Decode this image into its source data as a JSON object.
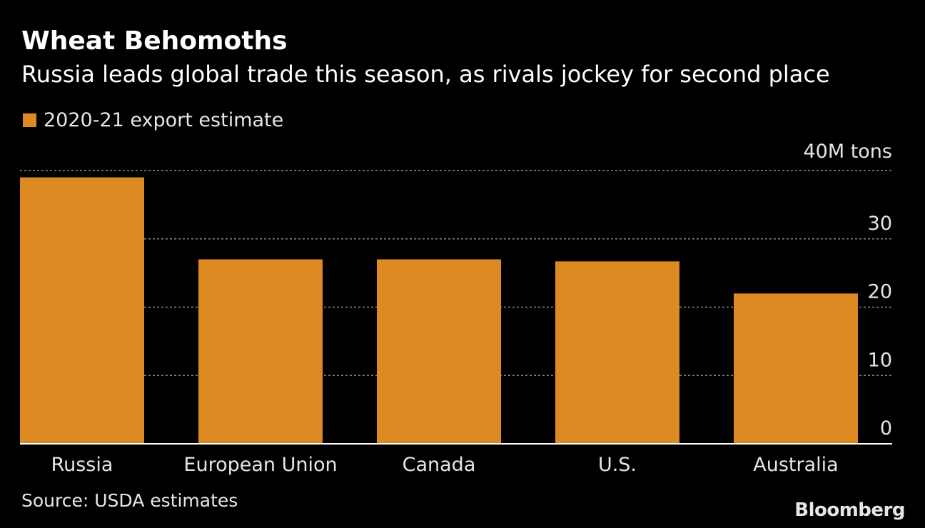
{
  "chart_data": {
    "type": "bar",
    "title": "Wheat Behomoths",
    "subtitle": "Russia leads global trade this season, as rivals jockey for second place",
    "legend": [
      {
        "label": "2020-21 export estimate",
        "color": "#dd8a22"
      }
    ],
    "unit_label": "40M tons",
    "categories": [
      "Russia",
      "European Union",
      "Canada",
      "U.S.",
      "Australia"
    ],
    "series": [
      {
        "name": "2020-21 export estimate",
        "values": [
          39.0,
          27.0,
          27.0,
          26.7,
          22.0
        ]
      }
    ],
    "ylim": [
      0,
      40
    ],
    "yticks": [
      0,
      10,
      20,
      30,
      40
    ],
    "ytick_labels": [
      "0",
      "10",
      "20",
      "30",
      ""
    ],
    "xlabel": "",
    "ylabel": "",
    "grid": true,
    "source": "Source: USDA estimates"
  },
  "brand": "Bloomberg",
  "colors": {
    "background": "#000000",
    "bar": "#dd8a22",
    "grid": "#8a8a8a",
    "axis": "#ffffff",
    "text": "#e6e6e6"
  }
}
